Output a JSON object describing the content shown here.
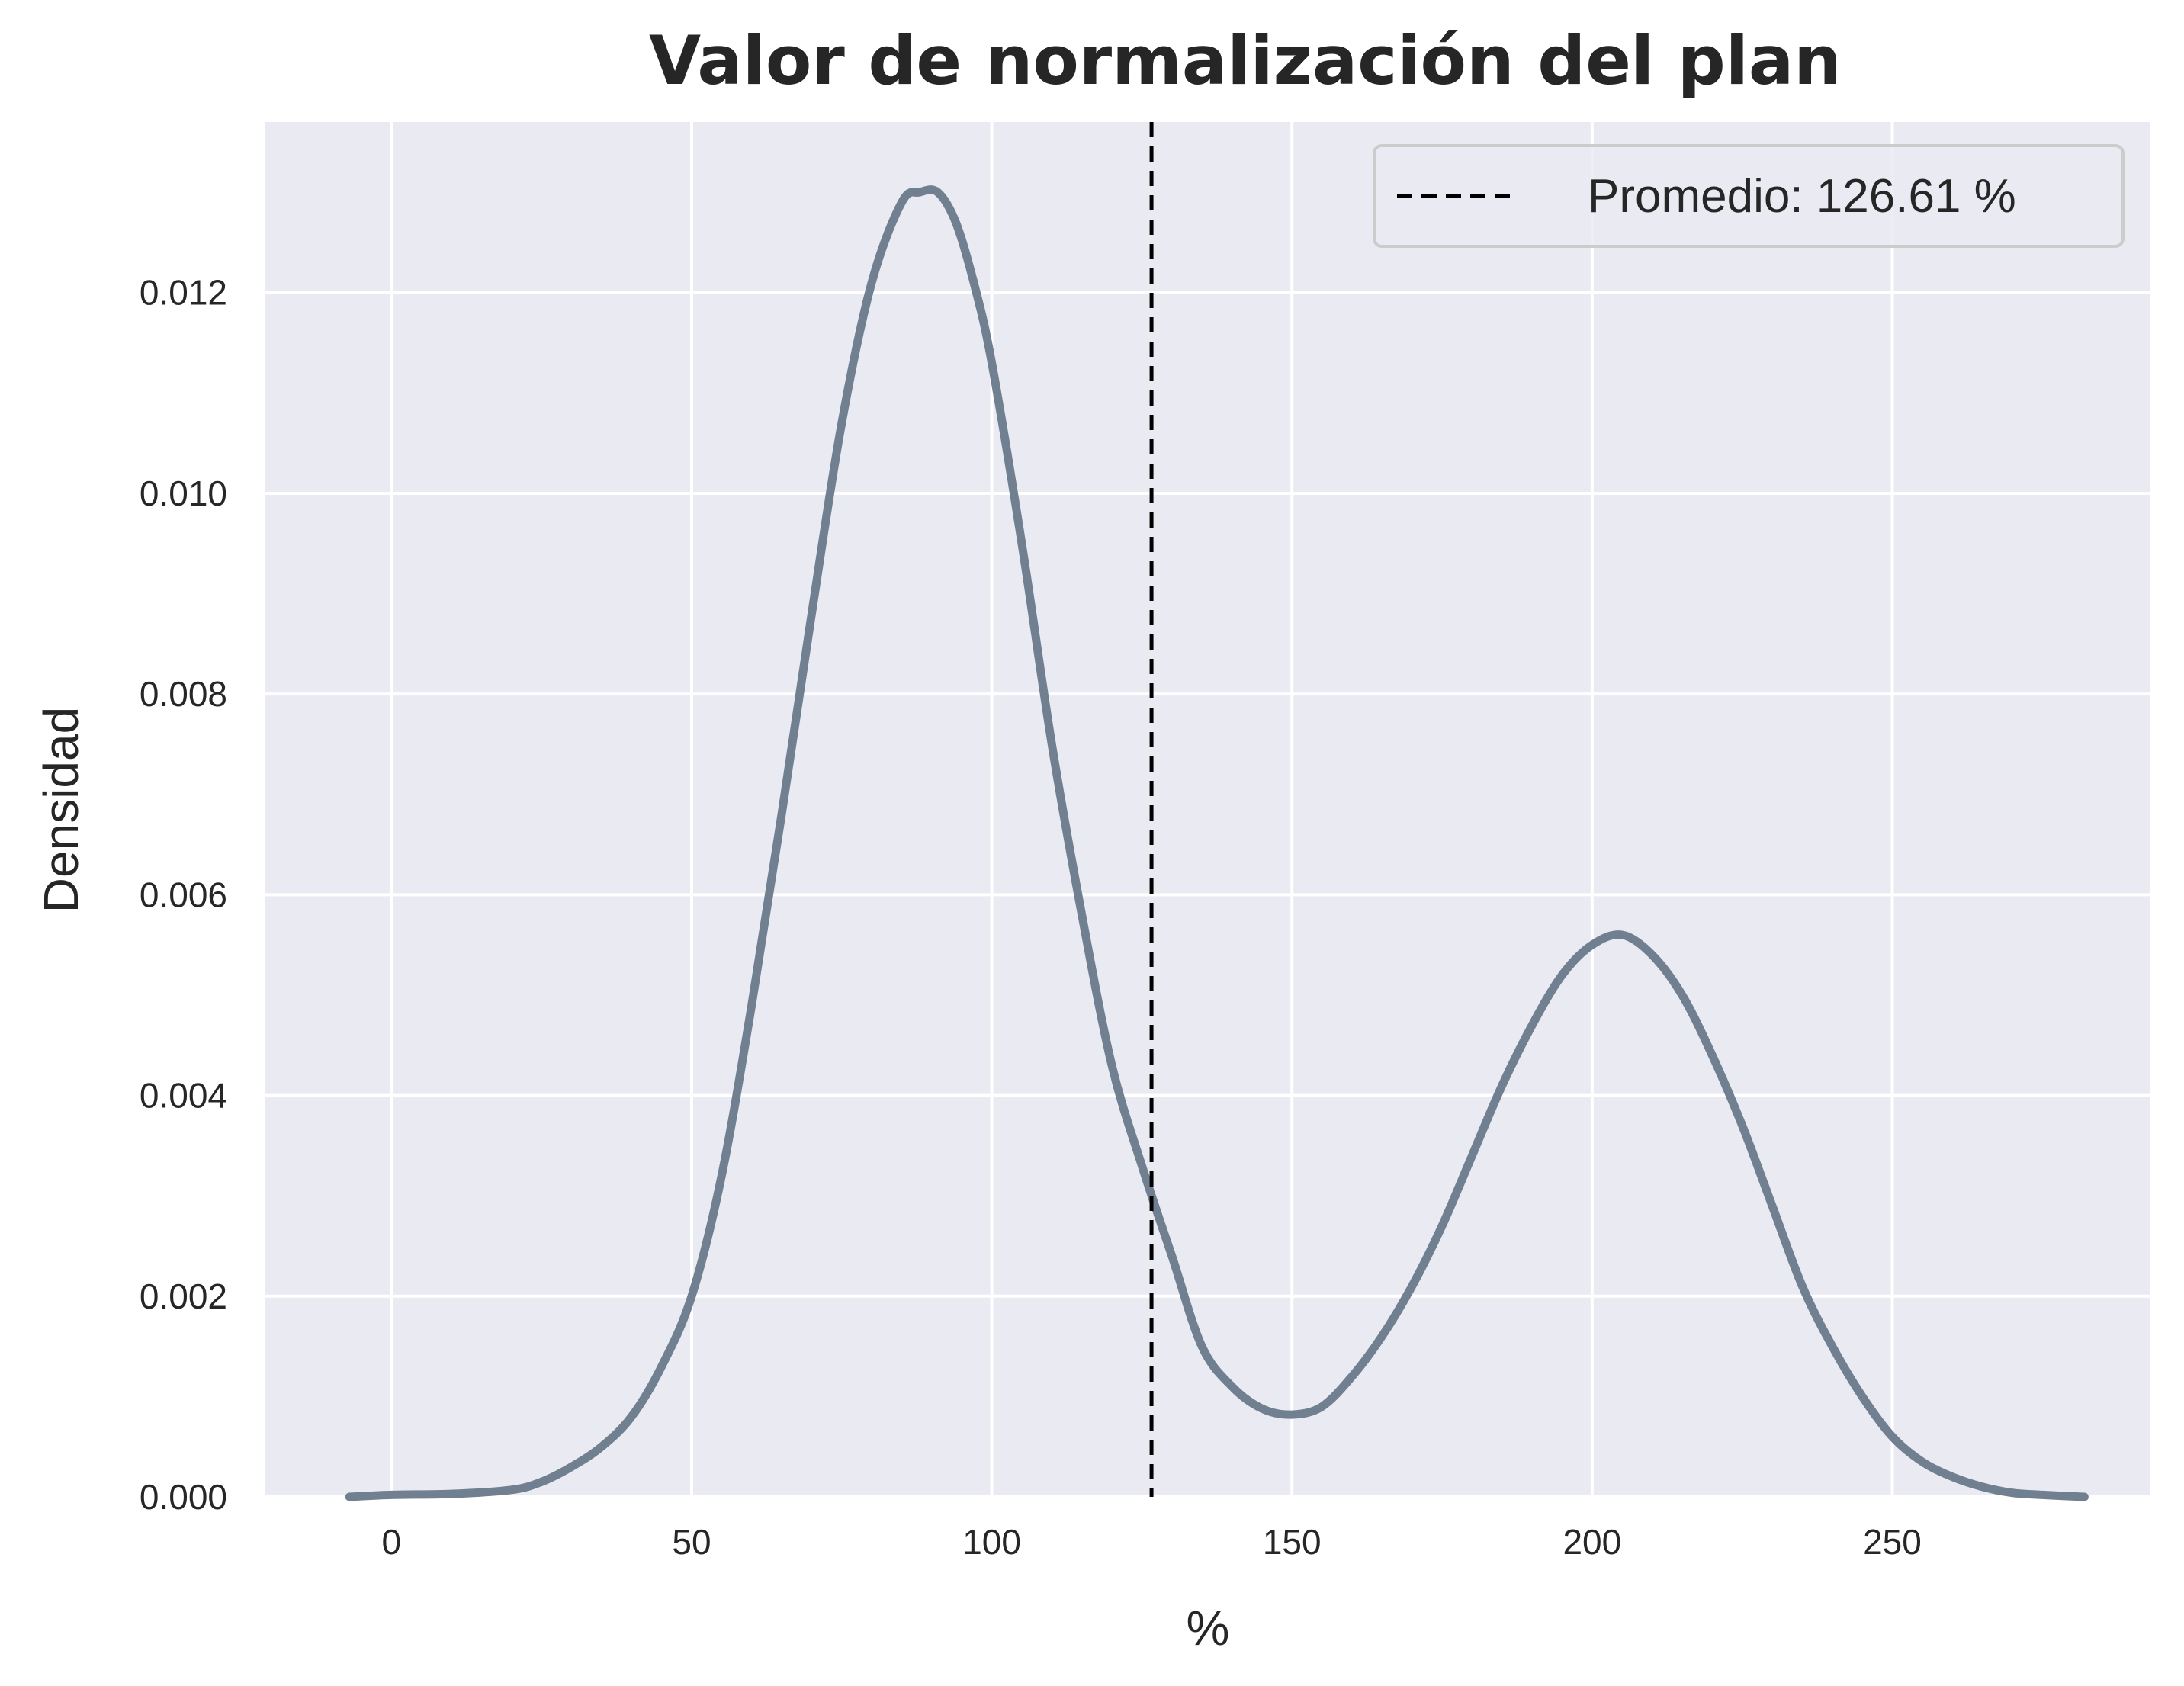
{
  "chart_data": {
    "type": "line",
    "title": "Valor de normalización del plan",
    "xlabel": "%",
    "ylabel": "Densidad",
    "xlim": [
      -21,
      293
    ],
    "ylim": [
      0,
      0.0137
    ],
    "x_ticks": [
      0,
      50,
      100,
      150,
      200,
      250
    ],
    "y_ticks": [
      0.0,
      0.002,
      0.004,
      0.006,
      0.008,
      0.01,
      0.012
    ],
    "x_tick_labels": [
      "0",
      "50",
      "100",
      "150",
      "200",
      "250"
    ],
    "y_tick_labels": [
      "0.000",
      "0.002",
      "0.004",
      "0.006",
      "0.008",
      "0.010",
      "0.012"
    ],
    "grid": true,
    "legend_position": "top-right",
    "colors": {
      "background": "#EAEAF2",
      "grid": "#FFFFFF",
      "density_line": "#708090",
      "mean_line": "#000000"
    },
    "series": [
      {
        "x": [
          -7,
          0,
          10,
          20,
          25,
          30,
          35,
          40,
          45,
          50,
          55,
          60,
          65,
          70,
          75,
          80,
          85,
          88,
          91,
          94,
          97,
          100,
          105,
          110,
          115,
          120,
          125,
          130,
          135,
          140,
          145,
          150,
          155,
          160,
          165,
          170,
          175,
          180,
          185,
          190,
          195,
          200,
          205,
          210,
          215,
          220,
          225,
          230,
          235,
          240,
          245,
          250,
          255,
          260,
          265,
          270,
          275,
          282
        ],
        "y": [
          0.0,
          2e-05,
          3e-05,
          7e-05,
          0.00015,
          0.0003,
          0.0005,
          0.0008,
          0.0013,
          0.002,
          0.0032,
          0.0049,
          0.0068,
          0.0088,
          0.0107,
          0.0121,
          0.0129,
          0.013,
          0.013,
          0.0127,
          0.0121,
          0.0113,
          0.0095,
          0.0075,
          0.0058,
          0.0043,
          0.0033,
          0.0024,
          0.0015,
          0.0011,
          0.00088,
          0.00082,
          0.0009,
          0.0012,
          0.0016,
          0.0021,
          0.0027,
          0.0034,
          0.0041,
          0.0047,
          0.0052,
          0.0055,
          0.0056,
          0.0054,
          0.005,
          0.0044,
          0.0037,
          0.0029,
          0.0021,
          0.0015,
          0.001,
          0.0006,
          0.00035,
          0.0002,
          0.0001,
          4e-05,
          2e-05,
          0.0
        ]
      }
    ],
    "vlines": [
      {
        "x": 126.61,
        "style": "dashed",
        "label": "Promedio: 126.61 %"
      }
    ]
  }
}
